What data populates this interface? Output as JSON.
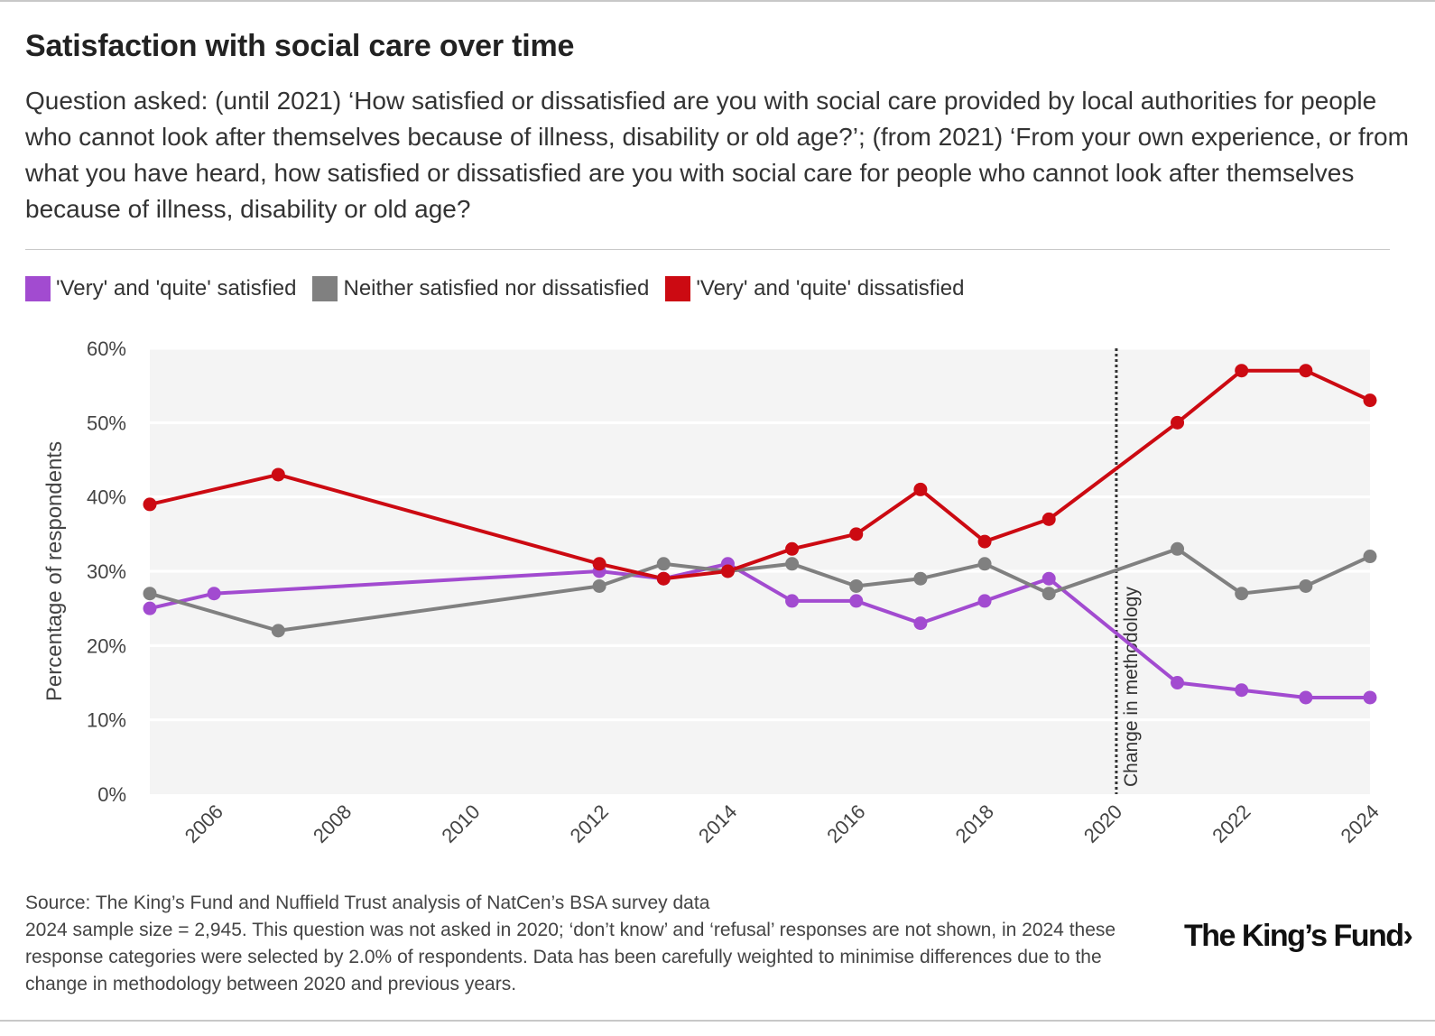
{
  "title": "Satisfaction with social care over time",
  "subtitle": "Question asked: (until 2021) ‘How satisfied or dissatisfied are you with social care provided by local authorities for people who cannot look after themselves because of illness, disability or old age?’; (from 2021) ‘From your own experience, or from what you have heard, how satisfied or dissatisfied are you with social care for people who cannot look after themselves because of illness, disability or old age?",
  "source": "Source: The King’s Fund and Nuffield Trust analysis of NatCen’s BSA survey data",
  "note": "2024 sample size = 2,945. This question was not asked in 2020; ‘don’t know’ and ‘refusal’ responses are not shown, in 2024 these response categories were selected by 2.0% of respondents. Data has been carefully weighted to minimise differences due to the change in methodology between 2020 and previous years.",
  "logo": "The King’s Fund›",
  "chart_data": {
    "type": "line",
    "ylabel": "Percentage of respondents",
    "xlabel": "",
    "ylim": [
      0,
      60
    ],
    "xlim": [
      2005,
      2024
    ],
    "x_ticks": [
      2006,
      2008,
      2010,
      2012,
      2014,
      2016,
      2018,
      2020,
      2022,
      2024
    ],
    "y_ticks": [
      0,
      10,
      20,
      30,
      40,
      50,
      60
    ],
    "y_tick_suffix": "%",
    "legend_position": "top-left",
    "background": "#f4f4f4",
    "series": [
      {
        "name": "'Very' and 'quite' satisfied",
        "color": "#a24bd0",
        "x": [
          2005,
          2006,
          2012,
          2013,
          2014,
          2015,
          2016,
          2017,
          2018,
          2019,
          2021,
          2022,
          2023,
          2024
        ],
        "values": [
          25,
          27,
          30,
          29,
          31,
          26,
          26,
          23,
          26,
          29,
          15,
          14,
          13,
          13
        ]
      },
      {
        "name": "Neither satisfied nor dissatisfied",
        "color": "#808080",
        "x": [
          2005,
          2007,
          2012,
          2013,
          2014,
          2015,
          2016,
          2017,
          2018,
          2019,
          2021,
          2022,
          2023,
          2024
        ],
        "values": [
          27,
          22,
          28,
          31,
          30,
          31,
          28,
          29,
          31,
          27,
          33,
          27,
          28,
          32
        ]
      },
      {
        "name": "'Very' and 'quite' dissatisfied",
        "color": "#cc0a12",
        "x": [
          2005,
          2007,
          2012,
          2013,
          2014,
          2015,
          2016,
          2017,
          2018,
          2019,
          2021,
          2022,
          2023,
          2024
        ],
        "values": [
          39,
          43,
          31,
          29,
          30,
          33,
          35,
          41,
          34,
          37,
          50,
          57,
          57,
          53
        ]
      }
    ],
    "annotations": [
      {
        "type": "vline",
        "x": 2020.05,
        "label": "Change in methodology"
      }
    ]
  }
}
